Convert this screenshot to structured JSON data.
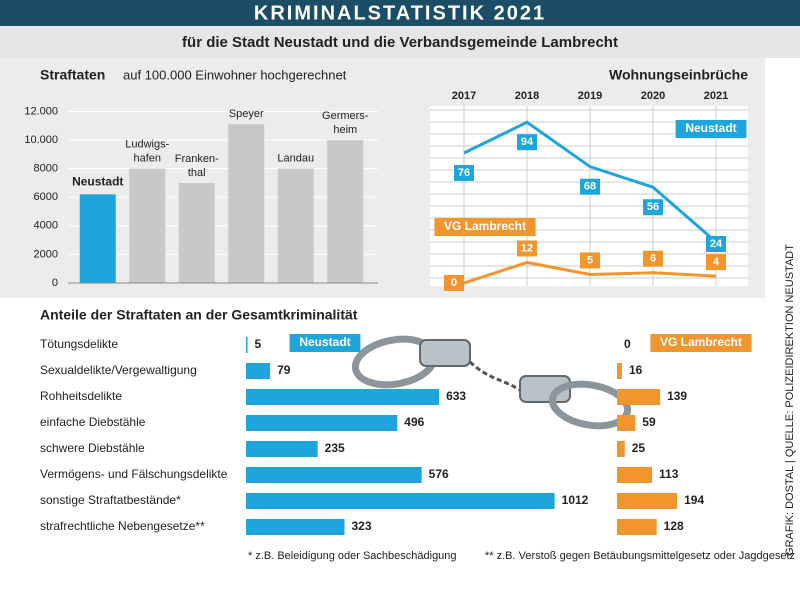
{
  "title": "KRIMINALSTATISTIK 2021",
  "subtitle": "für die Stadt Neustadt und die Verbandsgemeinde Lambrecht",
  "footnotes": [
    "* z.B. Beleidigung oder Sachbeschädigung",
    "** z.B. Verstoß gegen Betäubungsmittelgesetz oder Jagdgesetz"
  ],
  "source": "GRAFIK: DOSTAL | QUELLE: POLIZEIDIREKTION NEUSTADT",
  "chart_data": [
    {
      "type": "bar",
      "title": "Straftaten",
      "subtitle": "auf 100.000 Einwohner hochgerechnet",
      "categories": [
        "Neustadt",
        "Ludwigs-\nhafen",
        "Franken-\nthal",
        "Speyer",
        "Landau",
        "Germers-\nheim"
      ],
      "values": [
        6200,
        8000,
        7000,
        11100,
        8000,
        10000
      ],
      "colors": [
        "#1ea5dc",
        "#c8c8c8",
        "#c8c8c8",
        "#c8c8c8",
        "#c8c8c8",
        "#c8c8c8"
      ],
      "ylim": [
        0,
        12800
      ],
      "yticks": [
        0,
        2000,
        4000,
        6000,
        8000,
        {
          "value": 10000,
          "label": "10.000"
        },
        {
          "value": 12000,
          "label": "12.000"
        }
      ],
      "grid": true
    },
    {
      "type": "line",
      "title": "Wohnungseinbrüche",
      "categories": [
        "2017",
        "2018",
        "2019",
        "2020",
        "2021"
      ],
      "series": [
        {
          "name": "Neustadt",
          "color": "#1ea5dc",
          "values": [
            76,
            94,
            68,
            56,
            24
          ]
        },
        {
          "name": "VG Lambrecht",
          "color": "#f0962d",
          "values": [
            0,
            12,
            5,
            6,
            4
          ]
        }
      ],
      "ylim": [
        0,
        107
      ],
      "grid": true
    },
    {
      "type": "barh",
      "title": "Anteile der Straftaten an der Gesamtkriminalität",
      "categories": [
        "Tötungsdelikte",
        "Sexualdelikte/Vergewaltigung",
        "Rohheitsdelikte",
        "einfache Diebstähle",
        "schwere Diebstähle",
        "Vermögens- und Fälschungsdelikte",
        "sonstige Straftatbestände*",
        "strafrechtliche Nebengesetze**"
      ],
      "series": [
        {
          "name": "Neustadt",
          "color": "#1ea5dc",
          "values": [
            5,
            79,
            633,
            496,
            235,
            576,
            1012,
            323
          ]
        },
        {
          "name": "VG Lambrecht",
          "color": "#f0962d",
          "values": [
            0,
            16,
            139,
            59,
            25,
            113,
            194,
            128
          ]
        }
      ]
    }
  ]
}
